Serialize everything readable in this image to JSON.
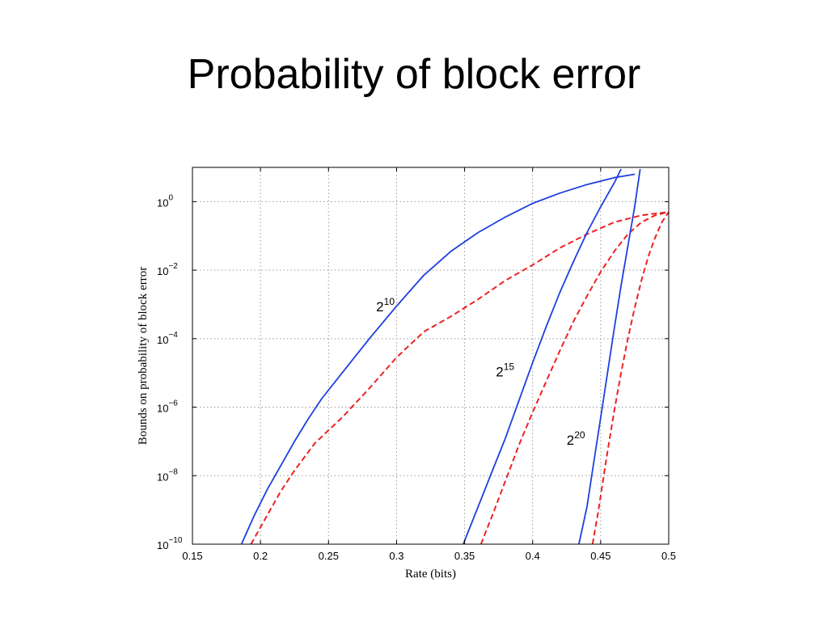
{
  "slide": {
    "title": "Probability of block error"
  },
  "chart_data": {
    "type": "line",
    "xlabel": "Rate (bits)",
    "ylabel": "Bounds on probability of block error",
    "xlim": [
      0.15,
      0.5
    ],
    "ylim_log10": [
      -10,
      1
    ],
    "y_scale": "log",
    "grid": true,
    "xticks": [
      0.15,
      0.2,
      0.25,
      0.3,
      0.35,
      0.4,
      0.45,
      0.5
    ],
    "x_tick_labels": [
      "0.15",
      "0.2",
      "0.25",
      "0.3",
      "0.35",
      "0.4",
      "0.45",
      "0.5"
    ],
    "yticks_exp": [
      0,
      -2,
      -4,
      -6,
      -8,
      -10
    ],
    "y_tick_bases": [
      "10",
      "10",
      "10",
      "10",
      "10",
      "10"
    ],
    "y_tick_exponents": [
      "0",
      "−2",
      "−4",
      "−6",
      "−8",
      "−10"
    ],
    "colors": {
      "upper": "#1f3fdf",
      "lower": "#ee2222"
    },
    "annotations": [
      {
        "base": "2",
        "exp": "10",
        "x": 0.285,
        "y_log10": -3.2
      },
      {
        "base": "2",
        "exp": "15",
        "x": 0.373,
        "y_log10": -5.1
      },
      {
        "base": "2",
        "exp": "20",
        "x": 0.425,
        "y_log10": -7.1
      }
    ],
    "series": [
      {
        "group": "2^10",
        "bound": "upper",
        "style": "solid",
        "points": [
          [
            0.186,
            -10
          ],
          [
            0.195,
            -9.2
          ],
          [
            0.205,
            -8.4
          ],
          [
            0.215,
            -7.7
          ],
          [
            0.225,
            -7.0
          ],
          [
            0.235,
            -6.35
          ],
          [
            0.245,
            -5.75
          ],
          [
            0.26,
            -5.0
          ],
          [
            0.28,
            -4.0
          ],
          [
            0.3,
            -3.05
          ],
          [
            0.32,
            -2.15
          ],
          [
            0.34,
            -1.45
          ],
          [
            0.36,
            -0.9
          ],
          [
            0.38,
            -0.45
          ],
          [
            0.4,
            -0.05
          ],
          [
            0.42,
            0.25
          ],
          [
            0.44,
            0.5
          ],
          [
            0.46,
            0.7
          ],
          [
            0.475,
            0.8
          ]
        ]
      },
      {
        "group": "2^10",
        "bound": "lower",
        "style": "dashed",
        "points": [
          [
            0.193,
            -10
          ],
          [
            0.205,
            -9.15
          ],
          [
            0.215,
            -8.45
          ],
          [
            0.225,
            -7.85
          ],
          [
            0.24,
            -7.05
          ],
          [
            0.26,
            -6.3
          ],
          [
            0.28,
            -5.45
          ],
          [
            0.3,
            -4.55
          ],
          [
            0.32,
            -3.8
          ],
          [
            0.34,
            -3.35
          ],
          [
            0.36,
            -2.85
          ],
          [
            0.38,
            -2.3
          ],
          [
            0.4,
            -1.85
          ],
          [
            0.42,
            -1.35
          ],
          [
            0.44,
            -0.95
          ],
          [
            0.46,
            -0.6
          ],
          [
            0.48,
            -0.4
          ],
          [
            0.5,
            -0.3
          ]
        ]
      },
      {
        "group": "2^15",
        "bound": "upper",
        "style": "solid",
        "points": [
          [
            0.349,
            -10
          ],
          [
            0.36,
            -8.9
          ],
          [
            0.37,
            -7.9
          ],
          [
            0.38,
            -6.9
          ],
          [
            0.39,
            -5.8
          ],
          [
            0.4,
            -4.7
          ],
          [
            0.41,
            -3.65
          ],
          [
            0.42,
            -2.65
          ],
          [
            0.43,
            -1.75
          ],
          [
            0.44,
            -0.9
          ],
          [
            0.45,
            -0.15
          ],
          [
            0.46,
            0.55
          ],
          [
            0.465,
            0.95
          ]
        ]
      },
      {
        "group": "2^15",
        "bound": "lower",
        "style": "dashed",
        "points": [
          [
            0.362,
            -10
          ],
          [
            0.37,
            -9.2
          ],
          [
            0.38,
            -8.15
          ],
          [
            0.39,
            -7.1
          ],
          [
            0.4,
            -6.15
          ],
          [
            0.41,
            -5.25
          ],
          [
            0.42,
            -4.35
          ],
          [
            0.43,
            -3.5
          ],
          [
            0.44,
            -2.75
          ],
          [
            0.45,
            -2.05
          ],
          [
            0.46,
            -1.45
          ],
          [
            0.47,
            -0.95
          ],
          [
            0.48,
            -0.6
          ],
          [
            0.49,
            -0.4
          ],
          [
            0.5,
            -0.3
          ]
        ]
      },
      {
        "group": "2^20",
        "bound": "upper",
        "style": "solid",
        "points": [
          [
            0.434,
            -10
          ],
          [
            0.44,
            -8.9
          ],
          [
            0.445,
            -7.6
          ],
          [
            0.45,
            -6.3
          ],
          [
            0.455,
            -5.0
          ],
          [
            0.46,
            -3.7
          ],
          [
            0.465,
            -2.45
          ],
          [
            0.47,
            -1.3
          ],
          [
            0.475,
            -0.15
          ],
          [
            0.479,
            0.95
          ]
        ]
      },
      {
        "group": "2^20",
        "bound": "lower",
        "style": "dashed",
        "points": [
          [
            0.444,
            -10
          ],
          [
            0.448,
            -9.1
          ],
          [
            0.455,
            -7.3
          ],
          [
            0.46,
            -6.1
          ],
          [
            0.465,
            -5.0
          ],
          [
            0.47,
            -4.0
          ],
          [
            0.475,
            -3.1
          ],
          [
            0.48,
            -2.3
          ],
          [
            0.485,
            -1.6
          ],
          [
            0.49,
            -1.05
          ],
          [
            0.495,
            -0.6
          ],
          [
            0.5,
            -0.3
          ]
        ]
      }
    ]
  }
}
